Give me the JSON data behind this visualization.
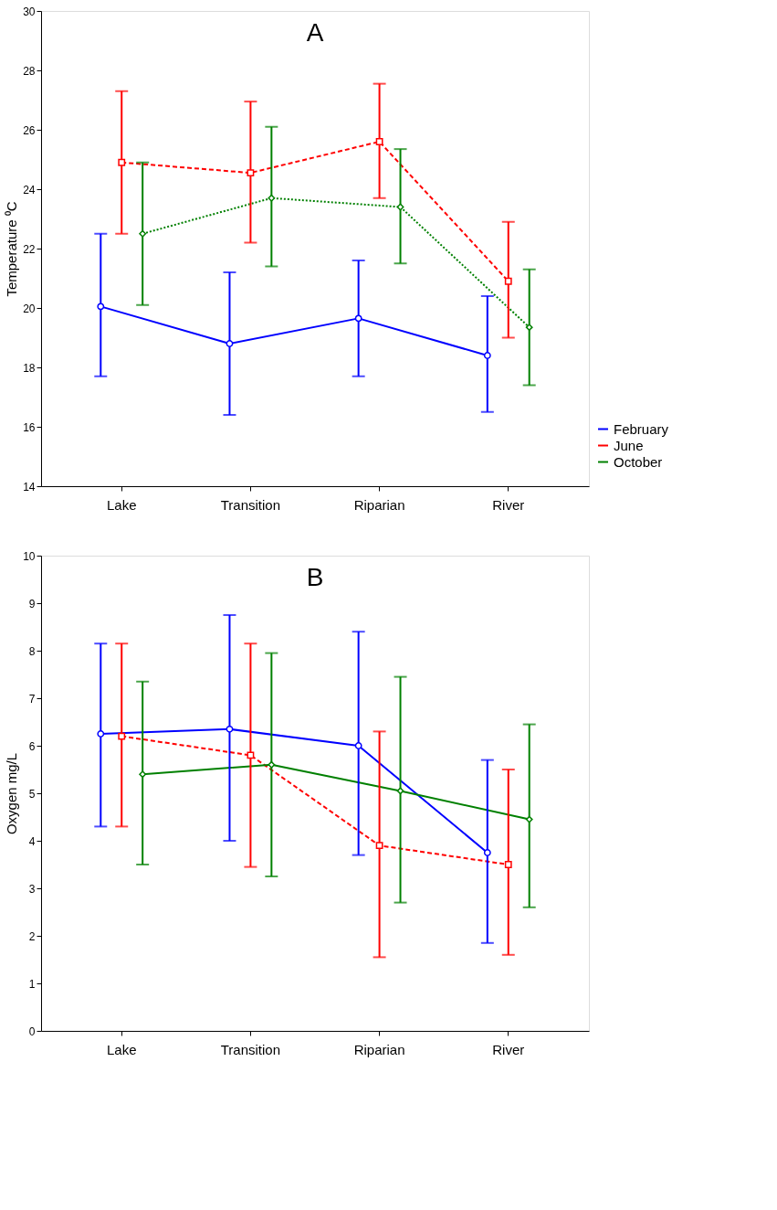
{
  "chart_data": [
    {
      "type": "line",
      "title": "A",
      "ylabel": "Temperature ⁰C",
      "categories": [
        "Lake",
        "Transition",
        "Riparian",
        "River"
      ],
      "ylim": [
        14,
        30
      ],
      "yticks": [
        14,
        16,
        18,
        20,
        22,
        24,
        26,
        28,
        30
      ],
      "grid": false,
      "legend": "bottom right",
      "series": [
        {
          "name": "February",
          "color": "#0000ff",
          "marker": "circle",
          "line_style": "solid",
          "values": [
            20.05,
            18.8,
            19.65,
            18.4
          ],
          "errors": [
            [
              17.7,
              22.5
            ],
            [
              16.4,
              21.2
            ],
            [
              17.7,
              21.6
            ],
            [
              16.5,
              20.4
            ]
          ]
        },
        {
          "name": "June",
          "color": "#ff0000",
          "marker": "square",
          "line_style": "dashed",
          "values": [
            24.9,
            24.55,
            25.6,
            20.9
          ],
          "errors": [
            [
              22.5,
              27.3
            ],
            [
              22.2,
              26.95
            ],
            [
              23.7,
              27.55
            ],
            [
              19.0,
              22.9
            ]
          ]
        },
        {
          "name": "October",
          "color": "#008000",
          "marker": "diamond",
          "line_style": "dotted",
          "values": [
            22.5,
            23.7,
            23.4,
            19.35
          ],
          "errors": [
            [
              20.1,
              24.9
            ],
            [
              21.4,
              26.1
            ],
            [
              21.5,
              25.35
            ],
            [
              17.4,
              21.3
            ]
          ]
        }
      ]
    },
    {
      "type": "line",
      "title": "B",
      "ylabel": "Oxygen mg/L",
      "categories": [
        "Lake",
        "Transition",
        "Riparian",
        "River"
      ],
      "ylim": [
        0,
        10
      ],
      "yticks": [
        0,
        1,
        2,
        3,
        4,
        5,
        6,
        7,
        8,
        9,
        10
      ],
      "grid": false,
      "legend": "bottom right",
      "series": [
        {
          "name": "February",
          "color": "#0000ff",
          "marker": "circle",
          "line_style": "solid",
          "values": [
            6.25,
            6.35,
            6.0,
            3.75
          ],
          "errors": [
            [
              4.3,
              8.15
            ],
            [
              4.0,
              8.75
            ],
            [
              3.7,
              8.4
            ],
            [
              1.85,
              5.7
            ]
          ]
        },
        {
          "name": "June",
          "color": "#ff0000",
          "marker": "square",
          "line_style": "dashed",
          "values": [
            6.2,
            5.8,
            3.9,
            3.5
          ],
          "errors": [
            [
              4.3,
              8.15
            ],
            [
              3.45,
              8.15
            ],
            [
              1.55,
              6.3
            ],
            [
              1.6,
              5.5
            ]
          ]
        },
        {
          "name": "October",
          "color": "#008000",
          "marker": "diamond",
          "line_style": "solid",
          "values": [
            5.4,
            5.6,
            5.05,
            4.45
          ],
          "errors": [
            [
              3.5,
              7.35
            ],
            [
              3.25,
              7.95
            ],
            [
              2.7,
              7.45
            ],
            [
              2.6,
              6.45
            ]
          ]
        }
      ]
    }
  ]
}
